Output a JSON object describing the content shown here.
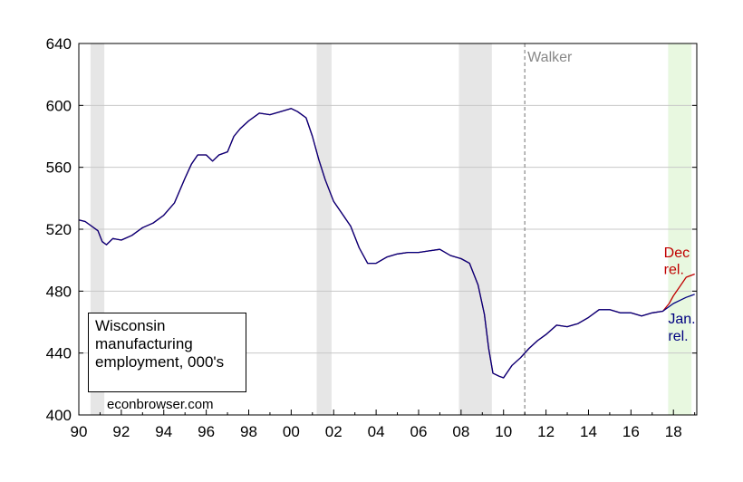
{
  "legend_box": {
    "lines": [
      "Wisconsin",
      "manufacturing",
      "employment, 000's"
    ]
  },
  "credit": "econbrowser.com",
  "chart_data": {
    "type": "line",
    "title": "",
    "xlabel": "",
    "ylabel": "",
    "ylim": [
      400,
      640
    ],
    "xlim": [
      1990,
      2019.1
    ],
    "y_ticks": [
      400,
      440,
      480,
      520,
      560,
      600,
      640
    ],
    "x_ticks": [
      {
        "value": 1990,
        "label": "90"
      },
      {
        "value": 1992,
        "label": "92"
      },
      {
        "value": 1994,
        "label": "94"
      },
      {
        "value": 1996,
        "label": "96"
      },
      {
        "value": 1998,
        "label": "98"
      },
      {
        "value": 2000,
        "label": "00"
      },
      {
        "value": 2002,
        "label": "02"
      },
      {
        "value": 2004,
        "label": "04"
      },
      {
        "value": 2006,
        "label": "06"
      },
      {
        "value": 2008,
        "label": "08"
      },
      {
        "value": 2010,
        "label": "10"
      },
      {
        "value": 2012,
        "label": "12"
      },
      {
        "value": 2014,
        "label": "14"
      },
      {
        "value": 2016,
        "label": "16"
      },
      {
        "value": 2018,
        "label": "18"
      }
    ],
    "grid": "horizontal",
    "recessions": [
      [
        1990.55,
        1991.2
      ],
      [
        2001.2,
        2001.9
      ],
      [
        2007.9,
        2009.45
      ]
    ],
    "highlight_period": [
      2017.75,
      2018.85
    ],
    "highlight_color": "#e8f8e0",
    "recession_color": "#e6e6e6",
    "vline": {
      "x": 2011.0,
      "label": "Walker",
      "color": "#888888"
    },
    "series": [
      {
        "name": "",
        "color": "#000080",
        "x": [
          1990.0,
          1990.3,
          1990.6,
          1990.9,
          1991.1,
          1991.3,
          1991.6,
          1992.0,
          1992.5,
          1993.0,
          1993.5,
          1994.0,
          1994.5,
          1995.0,
          1995.3,
          1995.6,
          1996.0,
          1996.3,
          1996.6,
          1997.0,
          1997.3,
          1997.6,
          1998.0,
          1998.5,
          1999.0,
          1999.5,
          2000.0,
          2000.3,
          2000.7,
          2001.0,
          2001.3,
          2001.6,
          2002.0,
          2002.4,
          2002.8,
          2003.2,
          2003.6,
          2004.0,
          2004.5,
          2005.0,
          2005.5,
          2006.0,
          2006.5,
          2007.0,
          2007.5,
          2008.0,
          2008.4,
          2008.8,
          2009.1,
          2009.3,
          2009.5,
          2009.8,
          2010.0,
          2010.4,
          2010.8,
          2011.2,
          2011.6,
          2012.0,
          2012.5,
          2013.0,
          2013.5,
          2014.0,
          2014.5,
          2015.0,
          2015.5,
          2016.0,
          2016.5,
          2017.0,
          2017.5,
          2017.8,
          2018.0,
          2018.3,
          2018.6,
          2019.0
        ],
        "y": [
          526,
          525,
          522,
          519,
          512,
          510,
          514,
          513,
          516,
          521,
          524,
          529,
          537,
          553,
          562,
          568,
          568,
          564,
          568,
          570,
          580,
          585,
          590,
          595,
          594,
          596,
          598,
          596,
          592,
          580,
          565,
          552,
          538,
          530,
          522,
          508,
          498,
          498,
          502,
          504,
          505,
          505,
          506,
          507,
          503,
          501,
          498,
          484,
          465,
          443,
          427,
          425,
          424,
          432,
          437,
          443,
          448,
          452,
          458,
          457,
          459,
          463,
          468,
          468,
          466,
          466,
          464,
          466,
          467,
          470,
          472,
          474,
          476,
          478
        ]
      },
      {
        "name": "",
        "color": "#c00000",
        "x": [
          1990.0,
          1990.3,
          1990.6,
          1990.9,
          1991.1,
          1991.3,
          1991.6,
          1992.0,
          1992.5,
          1993.0,
          1993.5,
          1994.0,
          1994.5,
          1995.0,
          1995.3,
          1995.6,
          1996.0,
          1996.3,
          1996.6,
          1997.0,
          1997.3,
          1997.6,
          1998.0,
          1998.5,
          1999.0,
          1999.5,
          2000.0,
          2000.3,
          2000.7,
          2001.0,
          2001.3,
          2001.6,
          2002.0,
          2002.4,
          2002.8,
          2003.2,
          2003.6,
          2004.0,
          2004.5,
          2005.0,
          2005.5,
          2006.0,
          2006.5,
          2007.0,
          2007.5,
          2008.0,
          2008.4,
          2008.8,
          2009.1,
          2009.3,
          2009.5,
          2009.8,
          2010.0,
          2010.4,
          2010.8,
          2011.2,
          2011.6,
          2012.0,
          2012.5,
          2013.0,
          2013.5,
          2014.0,
          2014.5,
          2015.0,
          2015.5,
          2016.0,
          2016.5,
          2017.0,
          2017.5,
          2017.8,
          2018.0,
          2018.3,
          2018.6,
          2019.0
        ],
        "y": [
          526,
          525,
          522,
          519,
          512,
          510,
          514,
          513,
          516,
          521,
          524,
          529,
          537,
          553,
          562,
          568,
          568,
          564,
          568,
          570,
          580,
          585,
          590,
          595,
          594,
          596,
          598,
          596,
          592,
          580,
          565,
          552,
          538,
          530,
          522,
          508,
          498,
          498,
          502,
          504,
          505,
          505,
          506,
          507,
          503,
          501,
          498,
          484,
          465,
          443,
          427,
          425,
          424,
          432,
          437,
          443,
          448,
          452,
          458,
          457,
          459,
          463,
          468,
          468,
          466,
          466,
          464,
          466,
          467,
          472,
          477,
          483,
          489,
          491
        ]
      }
    ],
    "annotations": [
      {
        "text": "Dec",
        "color": "#c00000"
      },
      {
        "text": "rel.",
        "color": "#c00000"
      },
      {
        "text": "Jan.",
        "color": "#000080"
      },
      {
        "text": "rel.",
        "color": "#000080"
      }
    ]
  }
}
